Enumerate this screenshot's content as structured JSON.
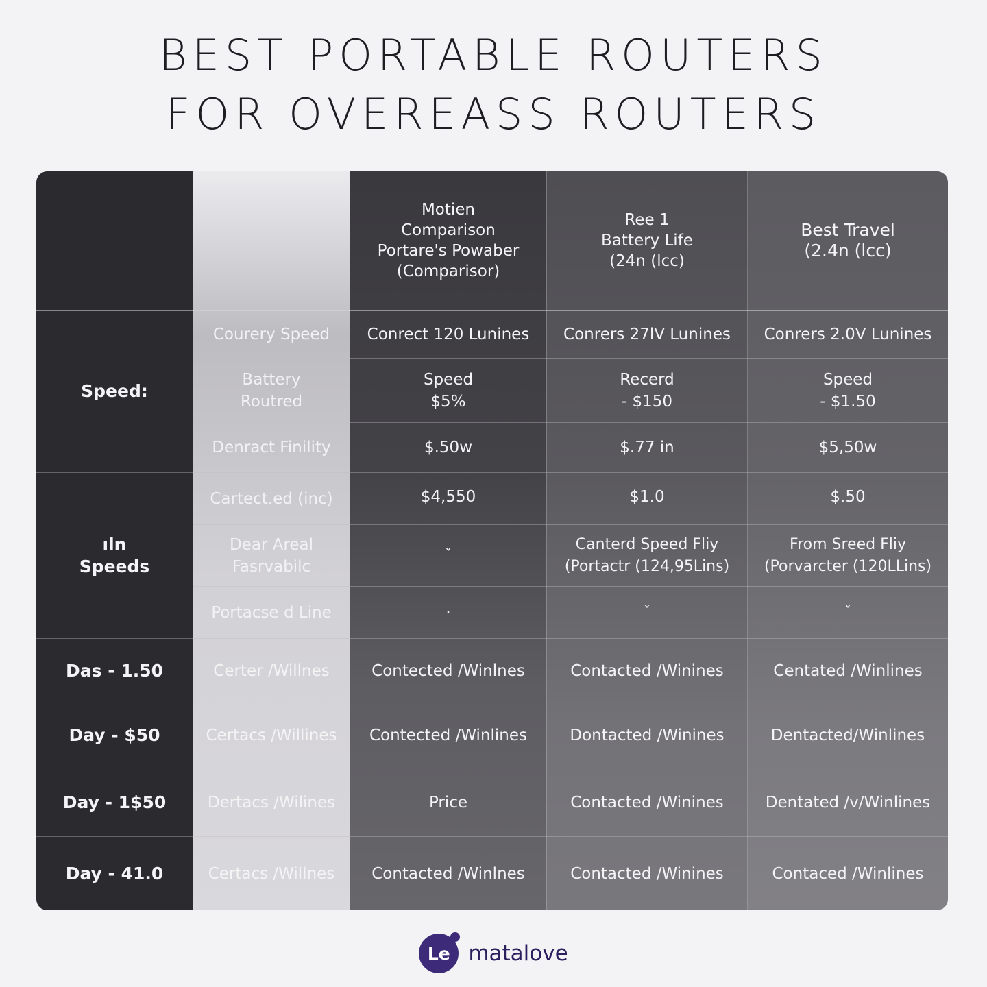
{
  "title": {
    "line1": "BEST PORTABLE ROUTERS",
    "line2": "FOR OVEREASS ROUTERS"
  },
  "table": {
    "headers": [
      "",
      "",
      "Motien\nComparison\nPortare's Powabеr\n(Comparisor)",
      "Ree 1\nBattery Life\n(24n (lcc)",
      "Best Travel\n(2.4n (lcc)"
    ],
    "groups": [
      {
        "label": "Speed:"
      },
      {
        "label": "ıln\nSpeeds"
      }
    ],
    "rows": [
      {
        "group_label": "",
        "sub": "Courery Speed",
        "cells": [
          "Conrect 120 Lunines",
          "Conrers 27lV Lunines",
          "Conrers 2.0V Lunines"
        ]
      },
      {
        "group_label": "",
        "sub": "Battery\nRoutred",
        "cells": [
          "Speed\n$5%",
          "Recerd\n- $150",
          "Speed\n- $1.50"
        ]
      },
      {
        "group_label": "",
        "sub": "Denract Finility",
        "cells": [
          "$.50w",
          "$.77 in",
          "$5,50w"
        ]
      },
      {
        "group_label": "",
        "sub": "Cartect.ed (inc)",
        "cells": [
          "$4,550",
          "$1.0",
          "$.50"
        ]
      },
      {
        "group_label": "",
        "sub": "Dear Areal\nFasrvabilc",
        "cells": [
          "ˇ",
          "Canterd Speed Fliy\n(Portactr (124,95Lins)",
          "From Sreed Fliy\n(Porvarcter (120LLins)"
        ]
      },
      {
        "group_label": "",
        "sub": "Portacse d Line",
        "cells": [
          "·",
          "ˇ",
          "ˇ"
        ]
      },
      {
        "group_label": "Das - 1.50",
        "sub": "Certer /Willnes",
        "cells": [
          "Contected /Winlnes",
          "Contacted /Winines",
          "Centated /Winlines"
        ]
      },
      {
        "group_label": "Day - $50",
        "sub": "Certacs /Willines",
        "cells": [
          "Contected /Winlines",
          "Dontacted /Winines",
          "Dentacted/Winlines"
        ]
      },
      {
        "group_label": "Day - 1$50",
        "sub": "Dertacs /Wilines",
        "cells": [
          "Price",
          "Contacted /Winines",
          "Dentated /v/Winlines"
        ]
      },
      {
        "group_label": "Day - 41.0",
        "sub": "Certacs /Willnes",
        "cells": [
          "Contacted /Winlnes",
          "Contacted /Winines",
          "Contaced /Winlines"
        ]
      }
    ]
  },
  "brand": {
    "mark": "Le",
    "name": "matalove",
    "color": "#3d2a78"
  }
}
